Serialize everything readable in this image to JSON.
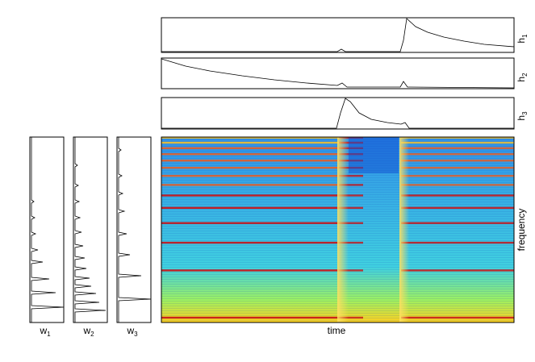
{
  "h_labels": [
    {
      "letter": "h",
      "index": "1"
    },
    {
      "letter": "h",
      "index": "2"
    },
    {
      "letter": "h",
      "index": "3"
    }
  ],
  "w_labels": [
    {
      "letter": "w",
      "index": "1"
    },
    {
      "letter": "w",
      "index": "2"
    },
    {
      "letter": "w",
      "index": "3"
    }
  ],
  "x_label": "time",
  "y_label": "frequency"
}
